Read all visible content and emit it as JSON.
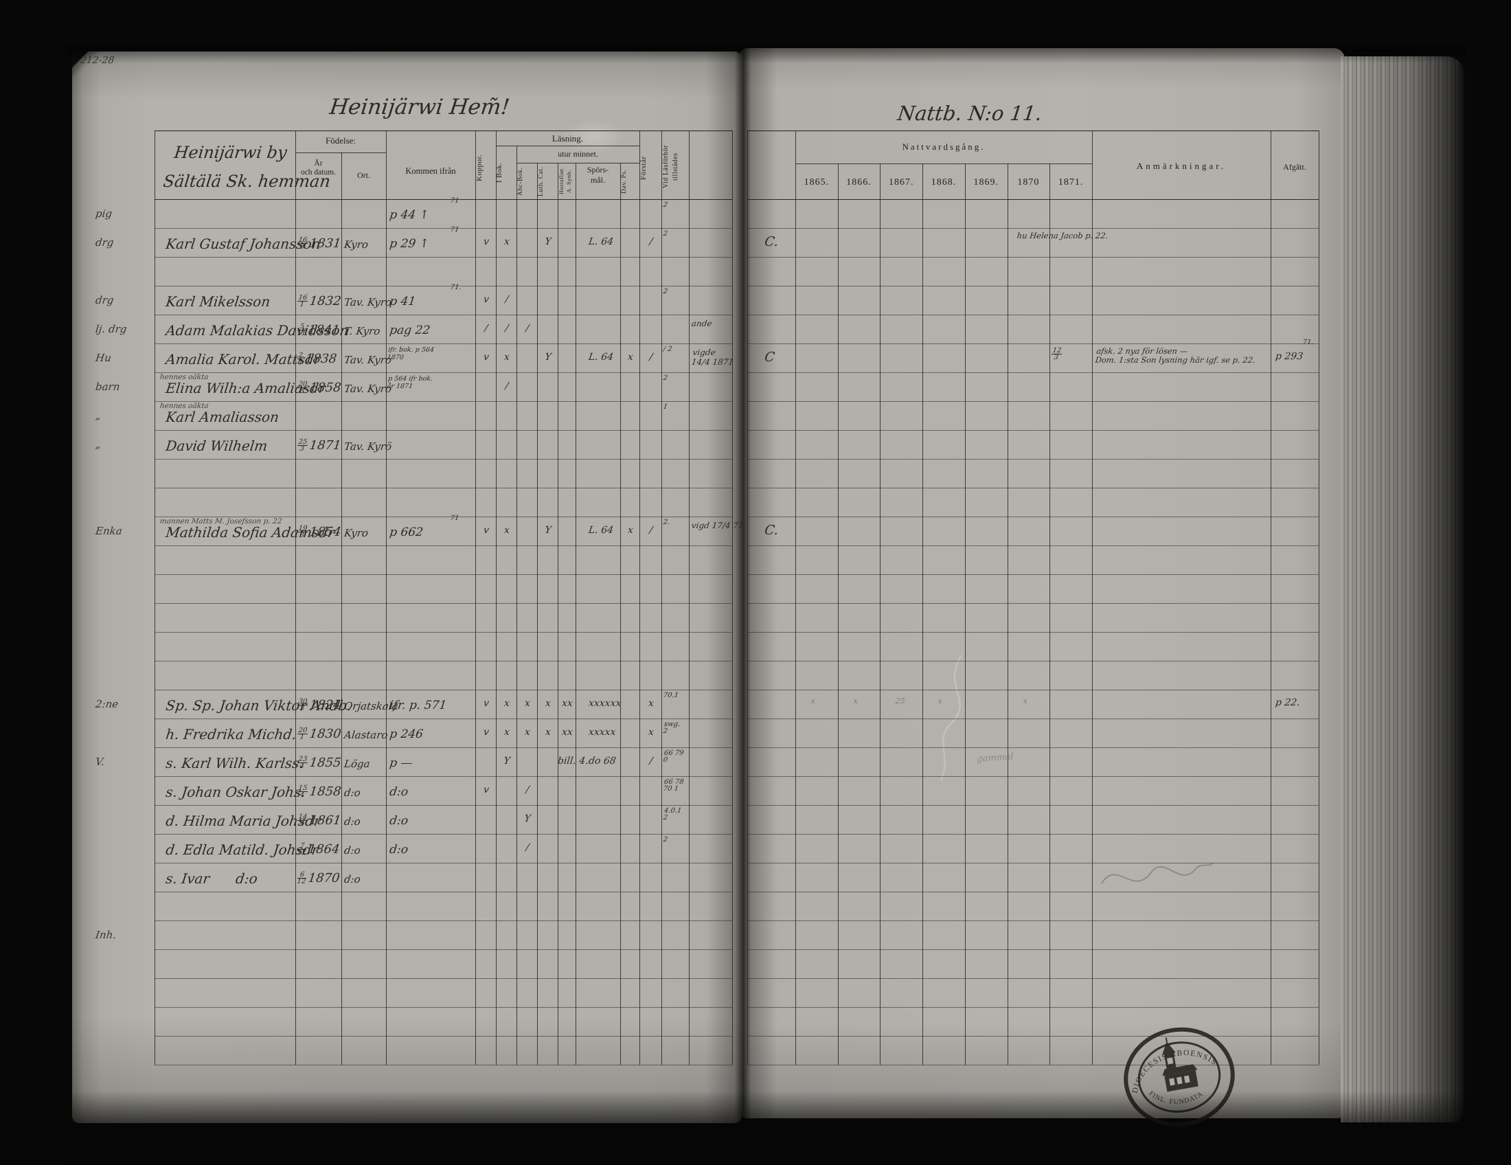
{
  "photo": {
    "corner_note": "212-28"
  },
  "left_page": {
    "title_script": "Heinijärwi Hem̃!",
    "group_line1": "Heinijärwi by",
    "group_line2": "Sältälä Sk. hemman",
    "headers": {
      "fodelse": "Födelse:",
      "ar_datum": "År\noch datum.",
      "ort": "Ort.",
      "kommen": "Kommen ifrån",
      "koppor": "Koppor.",
      "lasning": "Läsning.",
      "utur": "utur minnet.",
      "i_bok": "I Bok.",
      "abc": "Abc-Bok.",
      "luth": "Luth. Cat.",
      "hustaflan": "Hustaflan\nA. Synb.",
      "spors": "Spörs-\nmål.",
      "dav": "Dav. Ps.",
      "forstar": "Förstår",
      "vid": "Vid Läsförhör\ntillstädes"
    },
    "rows": [
      {
        "r": 0,
        "margin": "pig",
        "kommen": "p 44 ↑",
        "ksup": "71",
        "vid": "2"
      },
      {
        "r": 1,
        "margin": "drg",
        "name": "Karl Gustaf Johansson",
        "dd": "16",
        "mm": "8",
        "yr": "1831",
        "ort": "Kyro",
        "kommen": "p 29 ↑",
        "ksup": "71",
        "koppor": "v",
        "ibok": "x",
        "luth": "Y",
        "spors": "L. 64",
        "forstar": "/",
        "vid": "2"
      },
      {
        "r": 3,
        "margin": "drg",
        "name": "Karl Mikelsson",
        "dd": "16",
        "mm": "1",
        "yr": "1832",
        "ort": "Tav. Kyro",
        "kommen": "p 41",
        "ksup": "71.",
        "koppor": "v",
        "ibok": "/",
        "vid": "2"
      },
      {
        "r": 4,
        "margin": "lj. drg",
        "name": "Adam Malakias Davidsson",
        "dd": "5",
        "mm": "11",
        "yr": "1841",
        "ort": "T. Kyro",
        "kommen": "pag 22",
        "koppor": "/",
        "ibok": "/",
        "abc": "/",
        "extra": "ande"
      },
      {
        "r": 5,
        "margin": "Hu",
        "name": "Amalia Karol. Mattsdr",
        "dd": "2",
        "mm": "8",
        "yr": "1838",
        "ort": "Tav. Kyro",
        "kommen_small": "ifr. bok. p 564\n1870",
        "koppor": "v",
        "ibok": "x",
        "luth": "Y",
        "spors": "L. 64",
        "dav": "x",
        "forstar": "/",
        "vid": "/ 2",
        "extra": "vigde\n14/4 1871"
      },
      {
        "r": 6,
        "margin": "barn",
        "above": "hennes oäkta",
        "name": "Elina Wilh:a Amaliasdr",
        "dd": "20",
        "mm": "8",
        "yr": "1858",
        "ort": "Tav. Kyro",
        "kommen_small": "p 564 ifr bok.\når 1871",
        "ibok": "/",
        "vid": "2"
      },
      {
        "r": 7,
        "margin": "„",
        "above": "hennes oäkta",
        "name": "Karl Amaliasson",
        "vid": "1"
      },
      {
        "r": 8,
        "margin": "„",
        "name": "David Wilhelm",
        "dd": "25",
        "mm": "3",
        "yr": "1871",
        "ort": "Tav. Kyrö"
      },
      {
        "r": 11,
        "margin": "Enka",
        "above": "mannen Matts M. Josefsson p. 22",
        "name": "Mathilda Sofia Adamsdr",
        "dd": "19",
        "mm": "3",
        "yr": "1854",
        "ort": "Kyro",
        "kommen": "p 662",
        "ksup": "71",
        "koppor": "v",
        "ibok": "x",
        "luth": "Y",
        "spors": "L. 64",
        "dav": "x",
        "forstar": "/",
        "vid": "2.",
        "extra": "vigd 17/4 71"
      },
      {
        "r": 17,
        "margin": "2:ne",
        "name": "Sp. Sp. Johan Viktor Andb.",
        "dd": "30",
        "mm": "3",
        "yr": "1824",
        "ort": "Orjatskala",
        "kommen": "ifr. p. 571",
        "koppor": "v",
        "ibok": "x",
        "abc": "x",
        "luth": "x",
        "hust": "xx",
        "spors": "xxxxxx",
        "forstar": "x",
        "vid": "70.1"
      },
      {
        "r": 18,
        "name": "h. Fredrika Michd.",
        "dd": "20",
        "mm": "1",
        "yr": "1830",
        "ort": "Alastaro",
        "kommen": "p 246",
        "koppor": "v",
        "ibok": "x",
        "abc": "x",
        "luth": "x",
        "hust": "xx",
        "spors": "xxxxx",
        "forstar": "x",
        "vid": "swg.\n2"
      },
      {
        "r": 19,
        "margin": "V.",
        "name": "s. Karl Wilh. Karlss.",
        "dd": "23",
        "mm": "4",
        "yr": "1855",
        "ort": "Löga",
        "kommen": "p —",
        "ibok": "Y",
        "hust": "bill. 4.",
        "spors": "do 68",
        "forstar": "/",
        "vid": "66 79\n0"
      },
      {
        "r": 20,
        "name": "s. Johan Oskar Johs.",
        "dd": "15",
        "mm": "4",
        "yr": "1858",
        "ort": "d:o",
        "kommen": "d:o",
        "koppor": "v",
        "abc": "/",
        "vid": "66 78\n70 1"
      },
      {
        "r": 21,
        "name": "d. Hilma Maria Johsdr",
        "dd": "14",
        "mm": "4",
        "yr": "1861",
        "ort": "d:o",
        "kommen": "d:o",
        "abc": "Y",
        "vid": "4.0.1\n2"
      },
      {
        "r": 22,
        "name": "d. Edla Matild. Johsdr",
        "dd": "7",
        "mm": "12",
        "yr": "1864",
        "ort": "d:o",
        "kommen": "d:o",
        "abc": "/",
        "vid": "2"
      },
      {
        "r": 23,
        "name": "s. Ivar      d:o",
        "dd": "6",
        "mm": "12",
        "yr": "1870",
        "ort": "d:o"
      },
      {
        "r": 25,
        "margin": "Inh."
      }
    ]
  },
  "right_page": {
    "title_script": "Nattb. N:o 11.",
    "nattvardsgang": "Nattvardsgång.",
    "years": [
      "1865.",
      "1866.",
      "1867.",
      "1868.",
      "1869.",
      "1870",
      "1871."
    ],
    "anmarkningar": "Anmärkningar.",
    "afgatt": "Afgått.",
    "rows": [
      {
        "r": 1,
        "lead": "C.",
        "rx": 1480,
        "remark": "hu Helena Jacob p. 22."
      },
      {
        "r": 5,
        "lead": "C",
        "y1871_d": "12",
        "y1871_m": "3",
        "remark": "afsk. 2 nya för lösen —\nDom. 1:sta Son lysning här igf. se p. 22.",
        "afgatt": "p 293",
        "asup": "71."
      },
      {
        "r": 11,
        "lead": "C."
      },
      {
        "r": 17,
        "pencil": [
          "x",
          "x",
          "25",
          "x",
          "",
          "x",
          ""
        ],
        "afgatt": "p 22."
      },
      {
        "r": 19,
        "pencil_text": "gammal"
      }
    ]
  },
  "stamp": {
    "top": "DIOECESIS ABOENSIS",
    "bottom": "FINL. FUNDATA"
  }
}
